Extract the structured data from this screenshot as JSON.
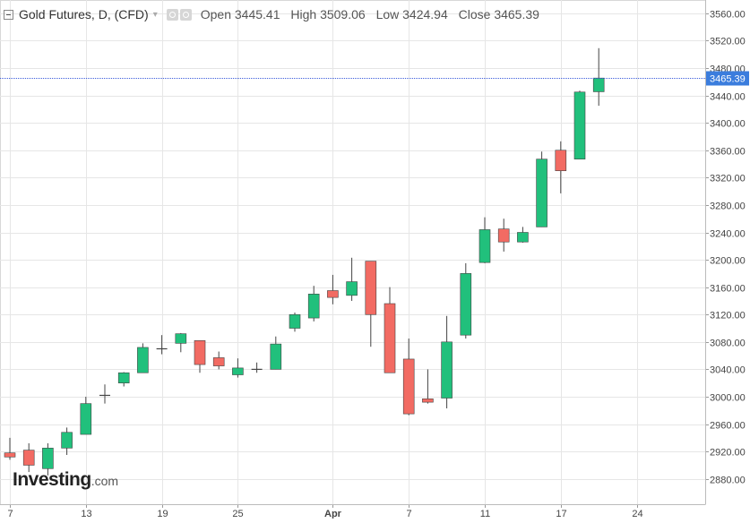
{
  "header": {
    "title": "Gold Futures, D, (CFD)",
    "caret": "▾",
    "open_label": "Open",
    "open_value": "3445.41",
    "high_label": "High",
    "high_value": "3509.06",
    "low_label": "Low",
    "low_value": "3424.94",
    "close_label": "Close",
    "close_value": "3465.39"
  },
  "watermark": {
    "brand": "Investing",
    "tld": ".com"
  },
  "colors": {
    "up": "#21c07c",
    "down": "#f26b63",
    "wick": "#444444",
    "grid": "#e6e6e6",
    "price_line": "#3b5bdb",
    "price_tag": "#3b7ddd"
  },
  "chart_data": {
    "type": "candlestick",
    "title": "Gold Futures, D, (CFD)",
    "ylim": [
      2840,
      3580
    ],
    "y_ticks": [
      2880,
      2920,
      2960,
      3000,
      3040,
      3080,
      3120,
      3160,
      3200,
      3240,
      3280,
      3320,
      3360,
      3400,
      3440,
      3480,
      3520,
      3560
    ],
    "y_tick_labels": [
      "2880.00",
      "2920.00",
      "2960.00",
      "3000.00",
      "3040.00",
      "3080.00",
      "3120.00",
      "3160.00",
      "3200.00",
      "3240.00",
      "3280.00",
      "3320.00",
      "3360.00",
      "3400.00",
      "3440.00",
      "3480.00",
      "3520.00",
      "3560.00"
    ],
    "x_ticks": [
      {
        "index": 0,
        "label": "7"
      },
      {
        "index": 4,
        "label": "13"
      },
      {
        "index": 8,
        "label": "19"
      },
      {
        "index": 12,
        "label": "25"
      },
      {
        "index": 17,
        "label": "Apr"
      },
      {
        "index": 21,
        "label": "7"
      },
      {
        "index": 25,
        "label": "11"
      },
      {
        "index": 29,
        "label": "17"
      },
      {
        "index": 33,
        "label": "24"
      }
    ],
    "current_price": 3465.39,
    "current_price_label": "3465.39",
    "candles": [
      {
        "o": 2918,
        "h": 2940,
        "l": 2908,
        "c": 2912
      },
      {
        "o": 2922,
        "h": 2932,
        "l": 2890,
        "c": 2900
      },
      {
        "o": 2895,
        "h": 2932,
        "l": 2885,
        "c": 2925
      },
      {
        "o": 2925,
        "h": 2955,
        "l": 2915,
        "c": 2948
      },
      {
        "o": 2945,
        "h": 3000,
        "l": 2945,
        "c": 2990
      },
      {
        "o": 3002,
        "h": 3018,
        "l": 2990,
        "c": 3002
      },
      {
        "o": 3020,
        "h": 3036,
        "l": 3015,
        "c": 3035
      },
      {
        "o": 3035,
        "h": 3078,
        "l": 3035,
        "c": 3072
      },
      {
        "o": 3070,
        "h": 3090,
        "l": 3062,
        "c": 3070
      },
      {
        "o": 3078,
        "h": 3093,
        "l": 3065,
        "c": 3092
      },
      {
        "o": 3082,
        "h": 3082,
        "l": 3035,
        "c": 3047
      },
      {
        "o": 3057,
        "h": 3066,
        "l": 3040,
        "c": 3045
      },
      {
        "o": 3032,
        "h": 3056,
        "l": 3028,
        "c": 3042
      },
      {
        "o": 3040,
        "h": 3050,
        "l": 3035,
        "c": 3040
      },
      {
        "o": 3040,
        "h": 3088,
        "l": 3040,
        "c": 3077
      },
      {
        "o": 3100,
        "h": 3123,
        "l": 3095,
        "c": 3120
      },
      {
        "o": 3115,
        "h": 3162,
        "l": 3110,
        "c": 3150
      },
      {
        "o": 3155,
        "h": 3178,
        "l": 3135,
        "c": 3145
      },
      {
        "o": 3148,
        "h": 3203,
        "l": 3140,
        "c": 3168
      },
      {
        "o": 3198,
        "h": 3198,
        "l": 3073,
        "c": 3120
      },
      {
        "o": 3136,
        "h": 3160,
        "l": 3035,
        "c": 3035
      },
      {
        "o": 3055,
        "h": 3085,
        "l": 2973,
        "c": 2975
      },
      {
        "o": 2997,
        "h": 3040,
        "l": 2990,
        "c": 2992
      },
      {
        "o": 2998,
        "h": 3118,
        "l": 2983,
        "c": 3080
      },
      {
        "o": 3090,
        "h": 3195,
        "l": 3085,
        "c": 3180
      },
      {
        "o": 3196,
        "h": 3262,
        "l": 3195,
        "c": 3244
      },
      {
        "o": 3245,
        "h": 3260,
        "l": 3212,
        "c": 3226
      },
      {
        "o": 3226,
        "h": 3248,
        "l": 3225,
        "c": 3240
      },
      {
        "o": 3248,
        "h": 3358,
        "l": 3248,
        "c": 3347
      },
      {
        "o": 3360,
        "h": 3373,
        "l": 3297,
        "c": 3330
      },
      {
        "o": 3347,
        "h": 3447,
        "l": 3347,
        "c": 3445
      },
      {
        "o": 3445.41,
        "h": 3509.06,
        "l": 3424.94,
        "c": 3465.39
      }
    ]
  }
}
